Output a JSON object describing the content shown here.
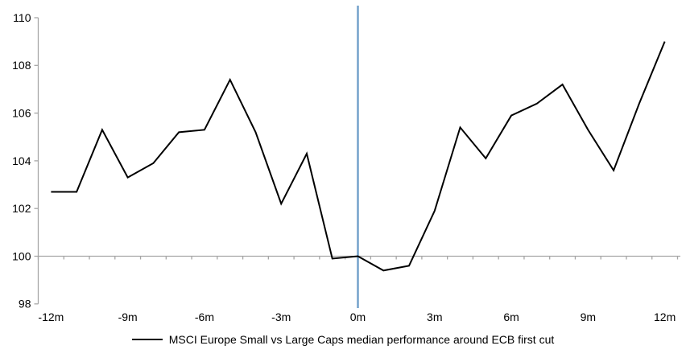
{
  "chart_data": {
    "type": "line",
    "title": "",
    "xlabel": "",
    "ylabel": "",
    "legend": "MSCI Europe Small vs Large Caps median performance around ECB first cut",
    "legend_position": "bottom",
    "grid": false,
    "x_months": [
      -12,
      -11,
      -10,
      -9,
      -8,
      -7,
      -6,
      -5,
      -4,
      -3,
      -2,
      -1,
      0,
      1,
      2,
      3,
      4,
      5,
      6,
      7,
      8,
      9,
      10,
      11,
      12
    ],
    "categories": [
      "-12m",
      "-11m",
      "-10m",
      "-9m",
      "-8m",
      "-7m",
      "-6m",
      "-5m",
      "-4m",
      "-3m",
      "-2m",
      "-1m",
      "0m",
      "1m",
      "2m",
      "3m",
      "4m",
      "5m",
      "6m",
      "7m",
      "8m",
      "9m",
      "10m",
      "11m",
      "12m"
    ],
    "values": [
      102.7,
      102.7,
      105.3,
      103.3,
      103.9,
      105.2,
      105.3,
      107.4,
      105.2,
      102.2,
      104.3,
      99.9,
      100.0,
      99.4,
      99.6,
      101.9,
      105.4,
      104.1,
      105.9,
      106.4,
      107.2,
      105.3,
      103.6,
      106.4,
      109.0
    ],
    "x_tick_labels": [
      "-12m",
      "-9m",
      "-6m",
      "-3m",
      "0m",
      "3m",
      "6m",
      "9m",
      "12m"
    ],
    "y_ticks": [
      98,
      100,
      102,
      104,
      106,
      108,
      110
    ],
    "ylim": [
      98,
      110
    ],
    "baseline_value": 100,
    "event_line_at": "0m",
    "colors": {
      "series": "#000000",
      "event_line": "#74A2CB",
      "axis": "#A6A6A6",
      "text": "#000000"
    }
  }
}
